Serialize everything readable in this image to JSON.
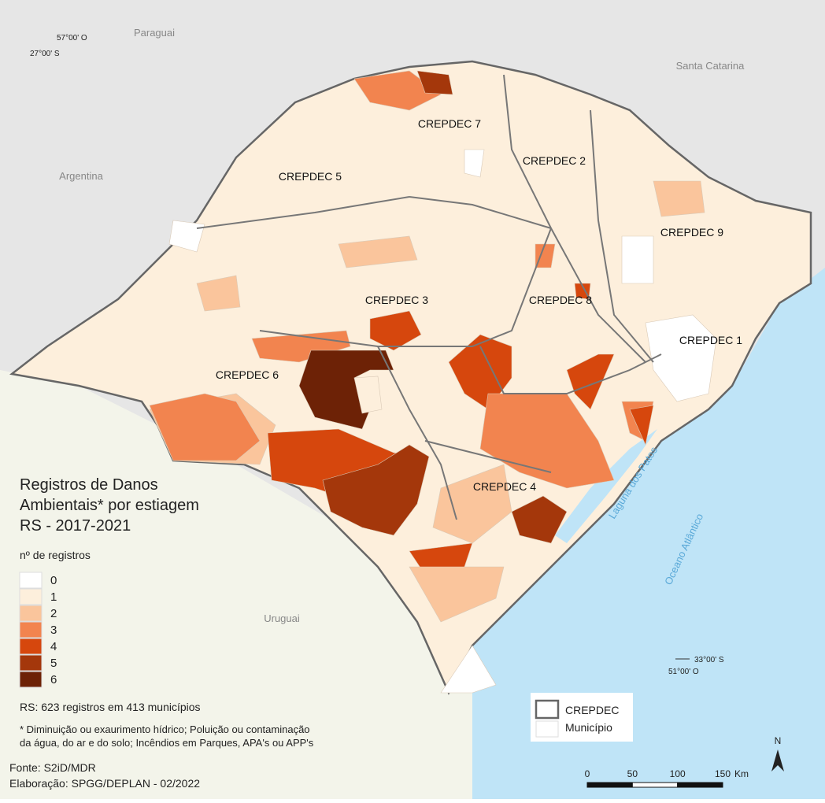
{
  "neighbors": [
    "Paraguai",
    "Santa Catarina",
    "Argentina",
    "Uruguai"
  ],
  "coordinates": [
    "57°00' O",
    "27°00' S",
    "33°00' S",
    "51°00' O"
  ],
  "water": [
    "Laguna dos Patos",
    "Oceano Atlântico"
  ],
  "regions": [
    "CREPDEC 7",
    "CREPDEC 2",
    "CREPDEC 5",
    "CREPDEC 9",
    "CREPDEC 3",
    "CREPDEC 8",
    "CREPDEC 1",
    "CREPDEC 6",
    "CREPDEC 4"
  ],
  "legend": {
    "title": [
      "Registros de Danos",
      "Ambientais* por estiagem",
      "RS - 2017-2021"
    ],
    "subtitle": "nº de registros",
    "classes": [
      {
        "value": 0,
        "color": "#ffffff"
      },
      {
        "value": 1,
        "color": "#fdefdc"
      },
      {
        "value": 2,
        "color": "#fac59c"
      },
      {
        "value": 3,
        "color": "#f2844f"
      },
      {
        "value": 4,
        "color": "#d6470d"
      },
      {
        "value": 5,
        "color": "#a4370b"
      },
      {
        "value": 6,
        "color": "#6d2206"
      }
    ],
    "summary": "RS: 623  registros em 413 municípios",
    "footnote": [
      "* Diminuição ou exaurimento hídrico; Poluição ou contaminação",
      "da água, do ar e do solo; Incêndios em Parques, APA's ou APP's"
    ]
  },
  "source": [
    "Fonte: S2iD/MDR",
    "Elaboração: SPGG/DEPLAN - 02/2022"
  ],
  "boundaries": [
    "CREPDEC",
    "Município"
  ],
  "scale": {
    "ticks": [
      0,
      50,
      100,
      150
    ],
    "unit": "Km"
  },
  "north": "N"
}
